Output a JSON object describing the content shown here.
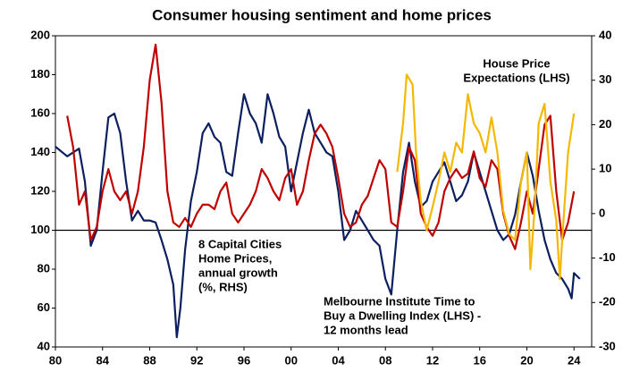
{
  "chart_data": {
    "type": "line",
    "title": "Consumer housing sentiment and home prices",
    "xlim": [
      1980,
      2025.5
    ],
    "xticks": [
      {
        "value": 1980,
        "label": "80"
      },
      {
        "value": 1984,
        "label": "84"
      },
      {
        "value": 1988,
        "label": "88"
      },
      {
        "value": 1992,
        "label": "92"
      },
      {
        "value": 1996,
        "label": "96"
      },
      {
        "value": 2000,
        "label": "00"
      },
      {
        "value": 2004,
        "label": "04"
      },
      {
        "value": 2008,
        "label": "08"
      },
      {
        "value": 2012,
        "label": "12"
      },
      {
        "value": 2016,
        "label": "16"
      },
      {
        "value": 2020,
        "label": "20"
      },
      {
        "value": 2024,
        "label": "24"
      }
    ],
    "ylim": [
      40,
      200
    ],
    "yticks": [
      40,
      60,
      80,
      100,
      120,
      140,
      160,
      180,
      200
    ],
    "y2lim": [
      -30,
      40
    ],
    "y2ticks": [
      -30,
      -20,
      -10,
      0,
      10,
      20,
      30,
      40
    ],
    "reference_line": 100,
    "series": [
      {
        "name": "Melbourne Institute Time to Buy a Dwelling Index (LHS) - 12 months lead",
        "color": "#0c1f5e",
        "axis": "y",
        "x": [
          1980,
          1981,
          1982,
          1982.5,
          1983,
          1983.5,
          1984,
          1984.5,
          1985,
          1985.5,
          1986,
          1986.5,
          1987,
          1987.5,
          1988,
          1988.5,
          1989,
          1989.5,
          1990,
          1990.3,
          1990.6,
          1991,
          1991.5,
          1992,
          1992.5,
          1993,
          1993.5,
          1994,
          1994.5,
          1995,
          1995.5,
          1996,
          1996.5,
          1997,
          1997.5,
          1998,
          1998.5,
          1999,
          1999.5,
          2000,
          2000.5,
          2001,
          2001.5,
          2002,
          2002.5,
          2003,
          2003.5,
          2004,
          2004.5,
          2005,
          2005.5,
          2006,
          2006.5,
          2007,
          2007.5,
          2008,
          2008.5,
          2009,
          2009.5,
          2010,
          2010.5,
          2011,
          2011.5,
          2012,
          2012.5,
          2013,
          2013.5,
          2014,
          2014.5,
          2015,
          2015.5,
          2016,
          2016.5,
          2017,
          2017.5,
          2018,
          2018.5,
          2019,
          2019.5,
          2020,
          2020.5,
          2021,
          2021.5,
          2022,
          2022.5,
          2023,
          2023.5,
          2023.8,
          2024,
          2024.5
        ],
        "values": [
          143,
          138,
          142,
          125,
          92,
          100,
          130,
          158,
          160,
          150,
          125,
          105,
          110,
          105,
          105,
          104,
          95,
          85,
          72,
          45,
          60,
          90,
          115,
          130,
          150,
          155,
          148,
          145,
          130,
          128,
          150,
          170,
          160,
          155,
          145,
          170,
          160,
          148,
          143,
          120,
          135,
          150,
          162,
          150,
          145,
          140,
          138,
          120,
          95,
          100,
          110,
          105,
          100,
          95,
          92,
          75,
          67,
          100,
          130,
          145,
          125,
          112,
          115,
          125,
          130,
          135,
          125,
          115,
          118,
          125,
          140,
          130,
          120,
          110,
          100,
          95,
          98,
          108,
          125,
          140,
          128,
          110,
          95,
          85,
          78,
          75,
          70,
          65,
          78,
          75
        ]
      },
      {
        "name": "8 Capital Cities Home Prices, annual growth (%, RHS)",
        "color": "#c00000",
        "axis": "y2",
        "x": [
          1981,
          1981.5,
          1982,
          1982.5,
          1983,
          1983.5,
          1984,
          1984.5,
          1985,
          1985.5,
          1986,
          1986.5,
          1987,
          1987.5,
          1988,
          1988.5,
          1989,
          1989.5,
          1990,
          1990.5,
          1991,
          1991.5,
          1992,
          1992.5,
          1993,
          1993.5,
          1994,
          1994.5,
          1995,
          1995.5,
          1996,
          1996.5,
          1997,
          1997.5,
          1998,
          1998.5,
          1999,
          1999.5,
          2000,
          2000.5,
          2001,
          2001.5,
          2002,
          2002.5,
          2003,
          2003.5,
          2004,
          2004.5,
          2005,
          2005.5,
          2006,
          2006.5,
          2007,
          2007.5,
          2008,
          2008.5,
          2009,
          2009.5,
          2010,
          2010.5,
          2011,
          2011.5,
          2012,
          2012.5,
          2013,
          2013.5,
          2014,
          2014.5,
          2015,
          2015.5,
          2016,
          2016.5,
          2017,
          2017.5,
          2018,
          2018.5,
          2019,
          2019.5,
          2020,
          2020.5,
          2021,
          2021.5,
          2022,
          2022.5,
          2023,
          2023.5,
          2024
        ],
        "values": [
          22,
          15,
          2,
          5,
          -6,
          -3,
          5,
          10,
          5,
          3,
          5,
          0,
          5,
          15,
          30,
          38,
          25,
          5,
          -2,
          -3,
          -1,
          -3,
          0,
          2,
          2,
          1,
          5,
          7,
          0,
          -2,
          0,
          2,
          5,
          10,
          8,
          5,
          3,
          8,
          10,
          2,
          5,
          12,
          18,
          20,
          18,
          15,
          8,
          0,
          -3,
          -2,
          2,
          4,
          8,
          12,
          10,
          -2,
          -3,
          5,
          15,
          12,
          0,
          -3,
          -5,
          -2,
          5,
          8,
          10,
          8,
          9,
          14,
          8,
          6,
          12,
          10,
          0,
          -5,
          -8,
          -2,
          5,
          0,
          10,
          20,
          22,
          5,
          -6,
          -2,
          5
        ]
      },
      {
        "name": "House Price Expectations (LHS)",
        "color": "#f5b800",
        "axis": "y",
        "x": [
          2009,
          2009.5,
          2009.8,
          2010.3,
          2010.6,
          2011,
          2011.5,
          2012,
          2012.5,
          2013,
          2013.5,
          2014,
          2014.5,
          2015,
          2015.5,
          2016,
          2016.5,
          2017,
          2017.5,
          2018,
          2018.5,
          2019,
          2019.5,
          2020,
          2020.3,
          2020.7,
          2021,
          2021.5,
          2022,
          2022.5,
          2022.8,
          2023,
          2023.5,
          2024
        ],
        "values": [
          130,
          155,
          180,
          175,
          140,
          115,
          100,
          112,
          125,
          140,
          130,
          145,
          140,
          170,
          155,
          150,
          140,
          158,
          140,
          110,
          98,
          95,
          125,
          140,
          80,
          115,
          155,
          165,
          125,
          105,
          75,
          95,
          140,
          160
        ]
      }
    ],
    "annotations": [
      {
        "lines": [
          "House Price",
          "Expectations (LHS)"
        ],
        "color": "#f5b800"
      },
      {
        "lines": [
          "8 Capital Cities",
          "Home Prices,",
          "annual growth",
          "(%, RHS)"
        ],
        "color": "#c00000"
      },
      {
        "lines": [
          "Melbourne Institute Time to",
          "Buy a Dwelling Index (LHS) -",
          "12 months lead"
        ],
        "color": "#0c1f5e"
      }
    ]
  }
}
